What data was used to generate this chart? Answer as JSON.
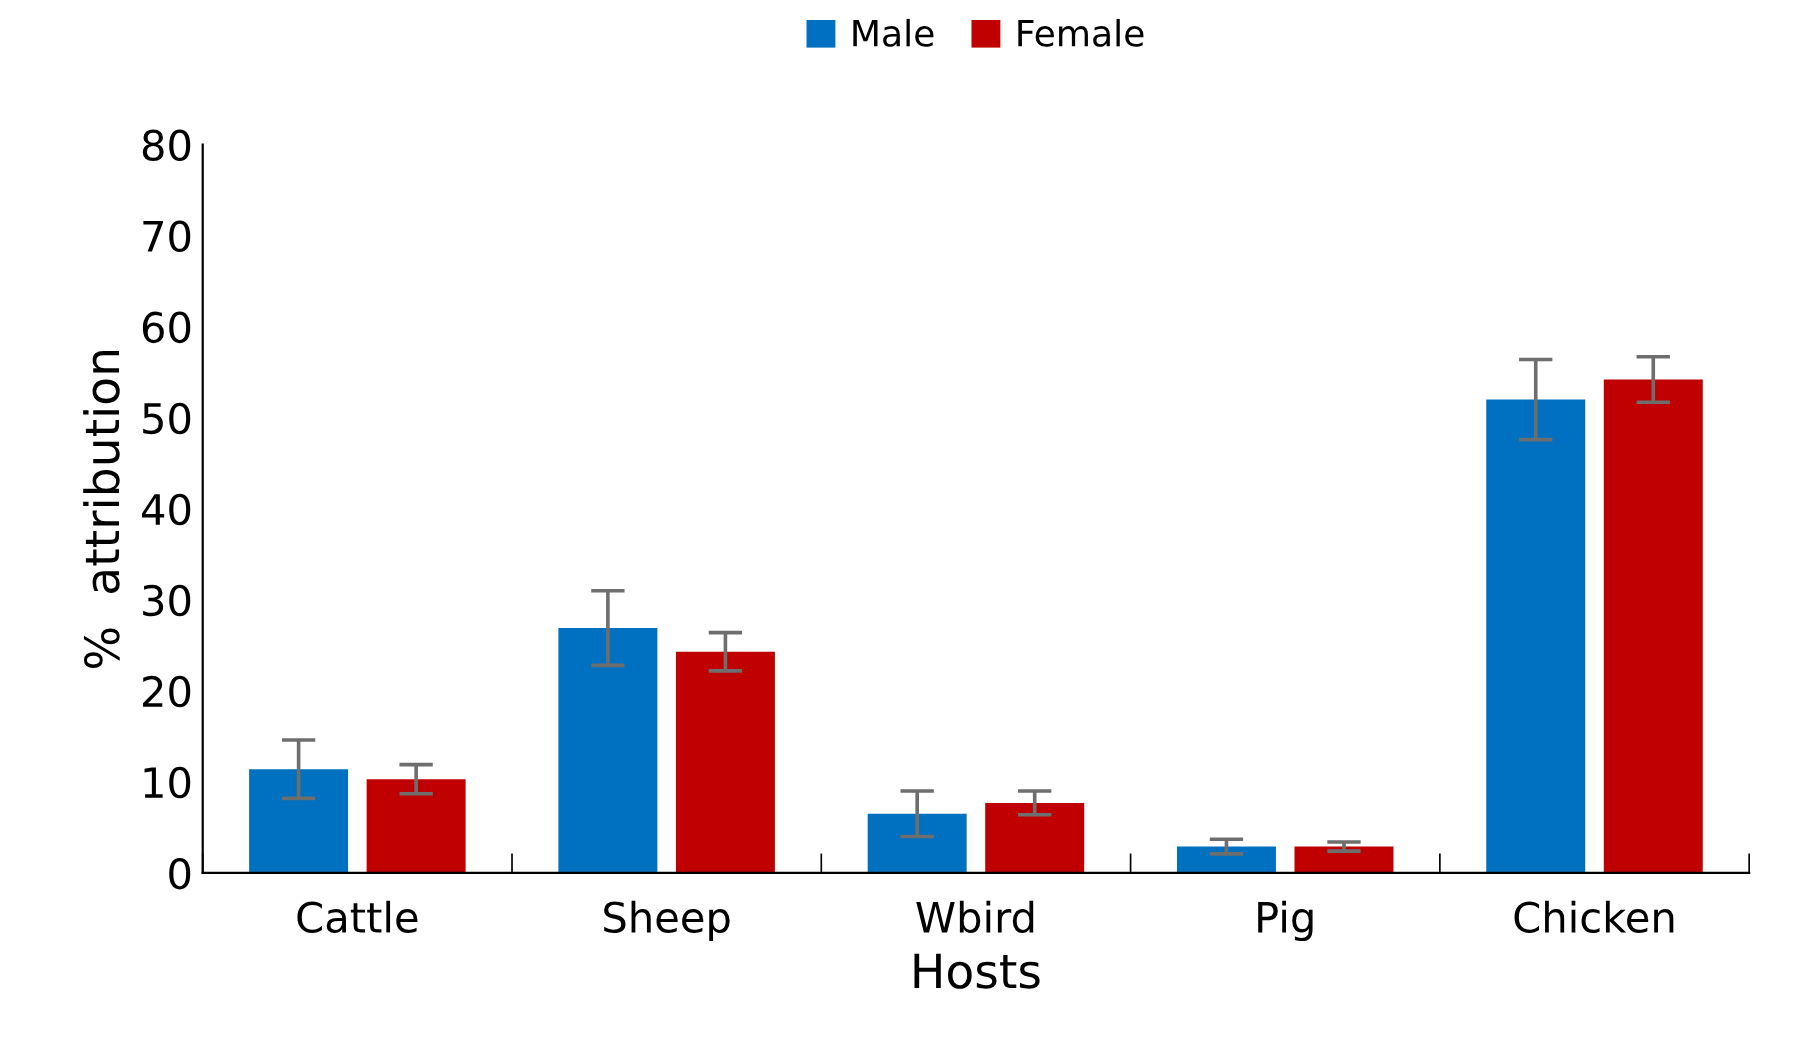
{
  "chart_data": {
    "type": "bar",
    "xlabel": "Hosts",
    "ylabel": "%  attribution",
    "categories": [
      "Cattle",
      "Sheep",
      "Wbird",
      "Pig",
      "Chicken"
    ],
    "series": [
      {
        "name": "Male",
        "color": "#0070c0",
        "values": [
          11.4,
          26.9,
          6.5,
          2.9,
          52.0
        ],
        "errors": [
          3.2,
          4.1,
          2.5,
          0.8,
          4.4
        ]
      },
      {
        "name": "Female",
        "color": "#c00000",
        "values": [
          10.3,
          24.3,
          7.7,
          2.9,
          54.2
        ],
        "errors": [
          1.6,
          2.1,
          1.3,
          0.5,
          2.5
        ]
      }
    ],
    "ylim": [
      0,
      80
    ],
    "yticks": [
      0,
      10,
      20,
      30,
      40,
      50,
      60,
      70,
      80
    ],
    "grid": false,
    "legend": "top"
  }
}
